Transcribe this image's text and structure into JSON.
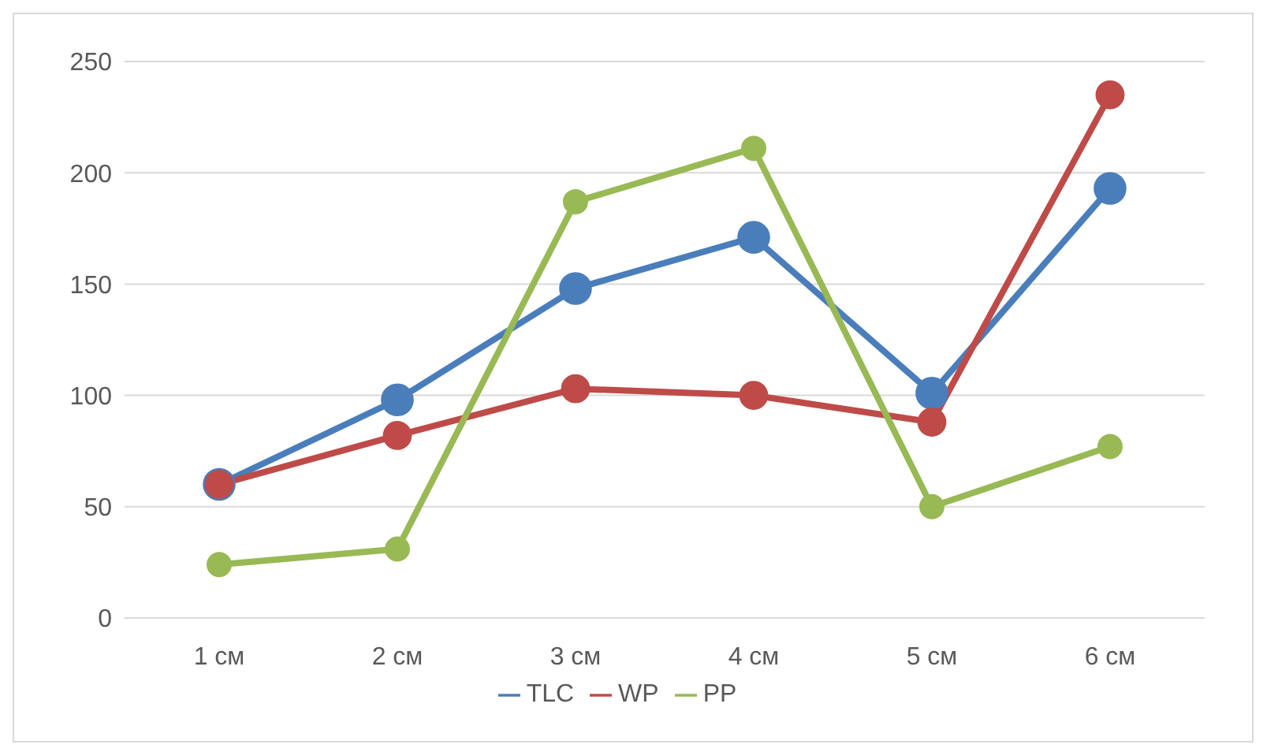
{
  "chart_data": {
    "type": "line",
    "categories": [
      "1 см",
      "2 см",
      "3 см",
      "4 см",
      "5 см",
      "6 см"
    ],
    "series": [
      {
        "name": "TLC",
        "color": "#4a7ebb",
        "values": [
          60,
          98,
          148,
          171,
          101,
          193
        ]
      },
      {
        "name": "WP",
        "color": "#be4b48",
        "values": [
          60,
          82,
          103,
          100,
          88,
          235
        ]
      },
      {
        "name": "PP",
        "color": "#98b954",
        "values": [
          24,
          31,
          187,
          211,
          50,
          77
        ]
      }
    ],
    "ylim": [
      0,
      250
    ],
    "yticks": [
      0,
      50,
      100,
      150,
      200,
      250
    ],
    "grid": "y",
    "legend": "bottom",
    "marker": "circle",
    "line_style": "solid"
  }
}
